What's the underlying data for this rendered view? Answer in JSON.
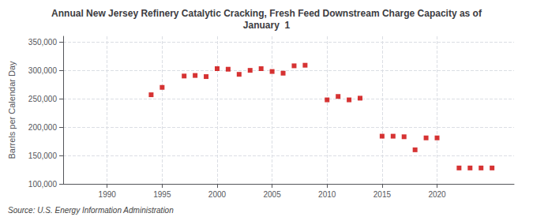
{
  "chart_data": {
    "type": "scatter",
    "title": "Annual New Jersey Refinery Catalytic Cracking, Fresh Feed Downstream Charge Capacity as of\nJanuary  1",
    "ylabel": "Barrels per Calendar Day",
    "annotations": [
      "Source: U.S. Energy Information Administration"
    ],
    "x": [
      1994,
      1995,
      1997,
      1998,
      1999,
      2000,
      2001,
      2002,
      2003,
      2004,
      2005,
      2006,
      2007,
      2008,
      2010,
      2011,
      2012,
      2013,
      2015,
      2016,
      2017,
      2018,
      2019,
      2020,
      2022,
      2023,
      2024,
      2025
    ],
    "values": [
      257000,
      270000,
      290000,
      291000,
      289000,
      303000,
      302000,
      293000,
      300000,
      303000,
      298000,
      295000,
      308000,
      309000,
      248000,
      254000,
      248000,
      251000,
      184000,
      184000,
      183000,
      160000,
      181000,
      181000,
      128000,
      128000,
      128000,
      128000
    ],
    "color": "#cc0000",
    "marker": "square",
    "xlim": [
      1986,
      2027
    ],
    "ylim": [
      100000,
      360000
    ],
    "xticks": [
      1990,
      1995,
      2000,
      2005,
      2010,
      2015,
      2020
    ],
    "yticks": [
      {
        "value": 100000,
        "label": "100,000"
      },
      {
        "value": 150000,
        "label": "150,000"
      },
      {
        "value": 200000,
        "label": "200,000"
      },
      {
        "value": 250000,
        "label": "250,000"
      },
      {
        "value": 300000,
        "label": "300,000"
      },
      {
        "value": 350000,
        "label": "350,000"
      }
    ],
    "grid": true
  }
}
